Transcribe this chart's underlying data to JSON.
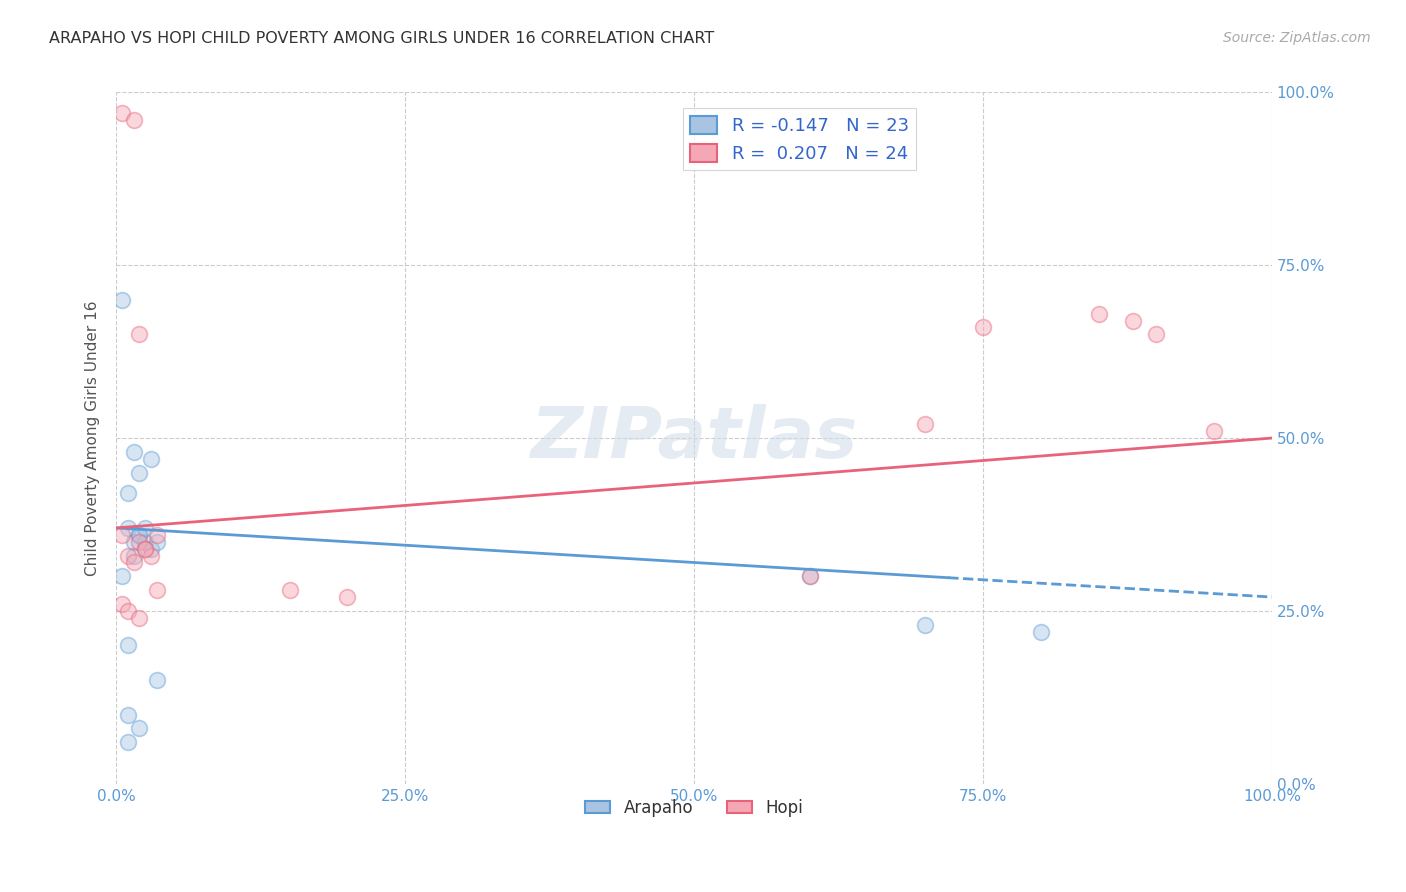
{
  "title": "ARAPAHO VS HOPI CHILD POVERTY AMONG GIRLS UNDER 16 CORRELATION CHART",
  "source": "Source: ZipAtlas.com",
  "ylabel": "Child Poverty Among Girls Under 16",
  "arapaho_color": "#a8c4e0",
  "hopi_color": "#f4a7b5",
  "arapaho_line_color": "#5b9bd5",
  "hopi_line_color": "#e8637a",
  "arapaho_R": -0.147,
  "arapaho_N": 23,
  "hopi_R": 0.207,
  "hopi_N": 24,
  "background_color": "#ffffff",
  "grid_color": "#cccccc",
  "arapaho_x": [
    1.0,
    1.5,
    2.0,
    2.5,
    3.0,
    3.5,
    1.0,
    1.5,
    2.0,
    0.5,
    1.5,
    2.0,
    3.0,
    1.0,
    2.5,
    1.0,
    2.0,
    3.5,
    0.5,
    1.0,
    60.0,
    70.0,
    80.0
  ],
  "arapaho_y": [
    37.0,
    35.0,
    36.0,
    35.0,
    34.0,
    35.0,
    42.0,
    33.0,
    36.0,
    70.0,
    48.0,
    45.0,
    47.0,
    20.0,
    37.0,
    10.0,
    8.0,
    15.0,
    30.0,
    6.0,
    30.0,
    23.0,
    22.0
  ],
  "hopi_x": [
    0.5,
    1.0,
    1.5,
    2.0,
    2.5,
    3.0,
    3.5,
    0.5,
    1.5,
    2.0,
    2.5,
    3.5,
    0.5,
    1.0,
    2.0,
    15.0,
    20.0,
    60.0,
    70.0,
    75.0,
    85.0,
    88.0,
    90.0,
    95.0
  ],
  "hopi_y": [
    36.0,
    33.0,
    32.0,
    35.0,
    34.0,
    33.0,
    28.0,
    97.0,
    96.0,
    65.0,
    34.0,
    36.0,
    26.0,
    25.0,
    24.0,
    28.0,
    27.0,
    30.0,
    52.0,
    66.0,
    68.0,
    67.0,
    65.0,
    51.0
  ],
  "xlim": [
    0,
    100
  ],
  "ylim": [
    0,
    100
  ],
  "xticks": [
    0,
    25,
    50,
    75,
    100
  ],
  "yticks": [
    0,
    25,
    50,
    75,
    100
  ],
  "xticklabels": [
    "0.0%",
    "25.0%",
    "50.0%",
    "75.0%",
    "100.0%"
  ],
  "yticklabels": [
    "0.0%",
    "25.0%",
    "50.0%",
    "75.0%",
    "100.0%"
  ],
  "marker_size": 130,
  "marker_alpha": 0.45,
  "marker_linewidth": 1.2,
  "arapaho_trend_start_y": 37.0,
  "arapaho_trend_end_y": 27.0,
  "hopi_trend_start_y": 37.0,
  "hopi_trend_end_y": 50.0,
  "hopi_solid_end_x": 92.0,
  "blue_dash_start_x": 72.0
}
